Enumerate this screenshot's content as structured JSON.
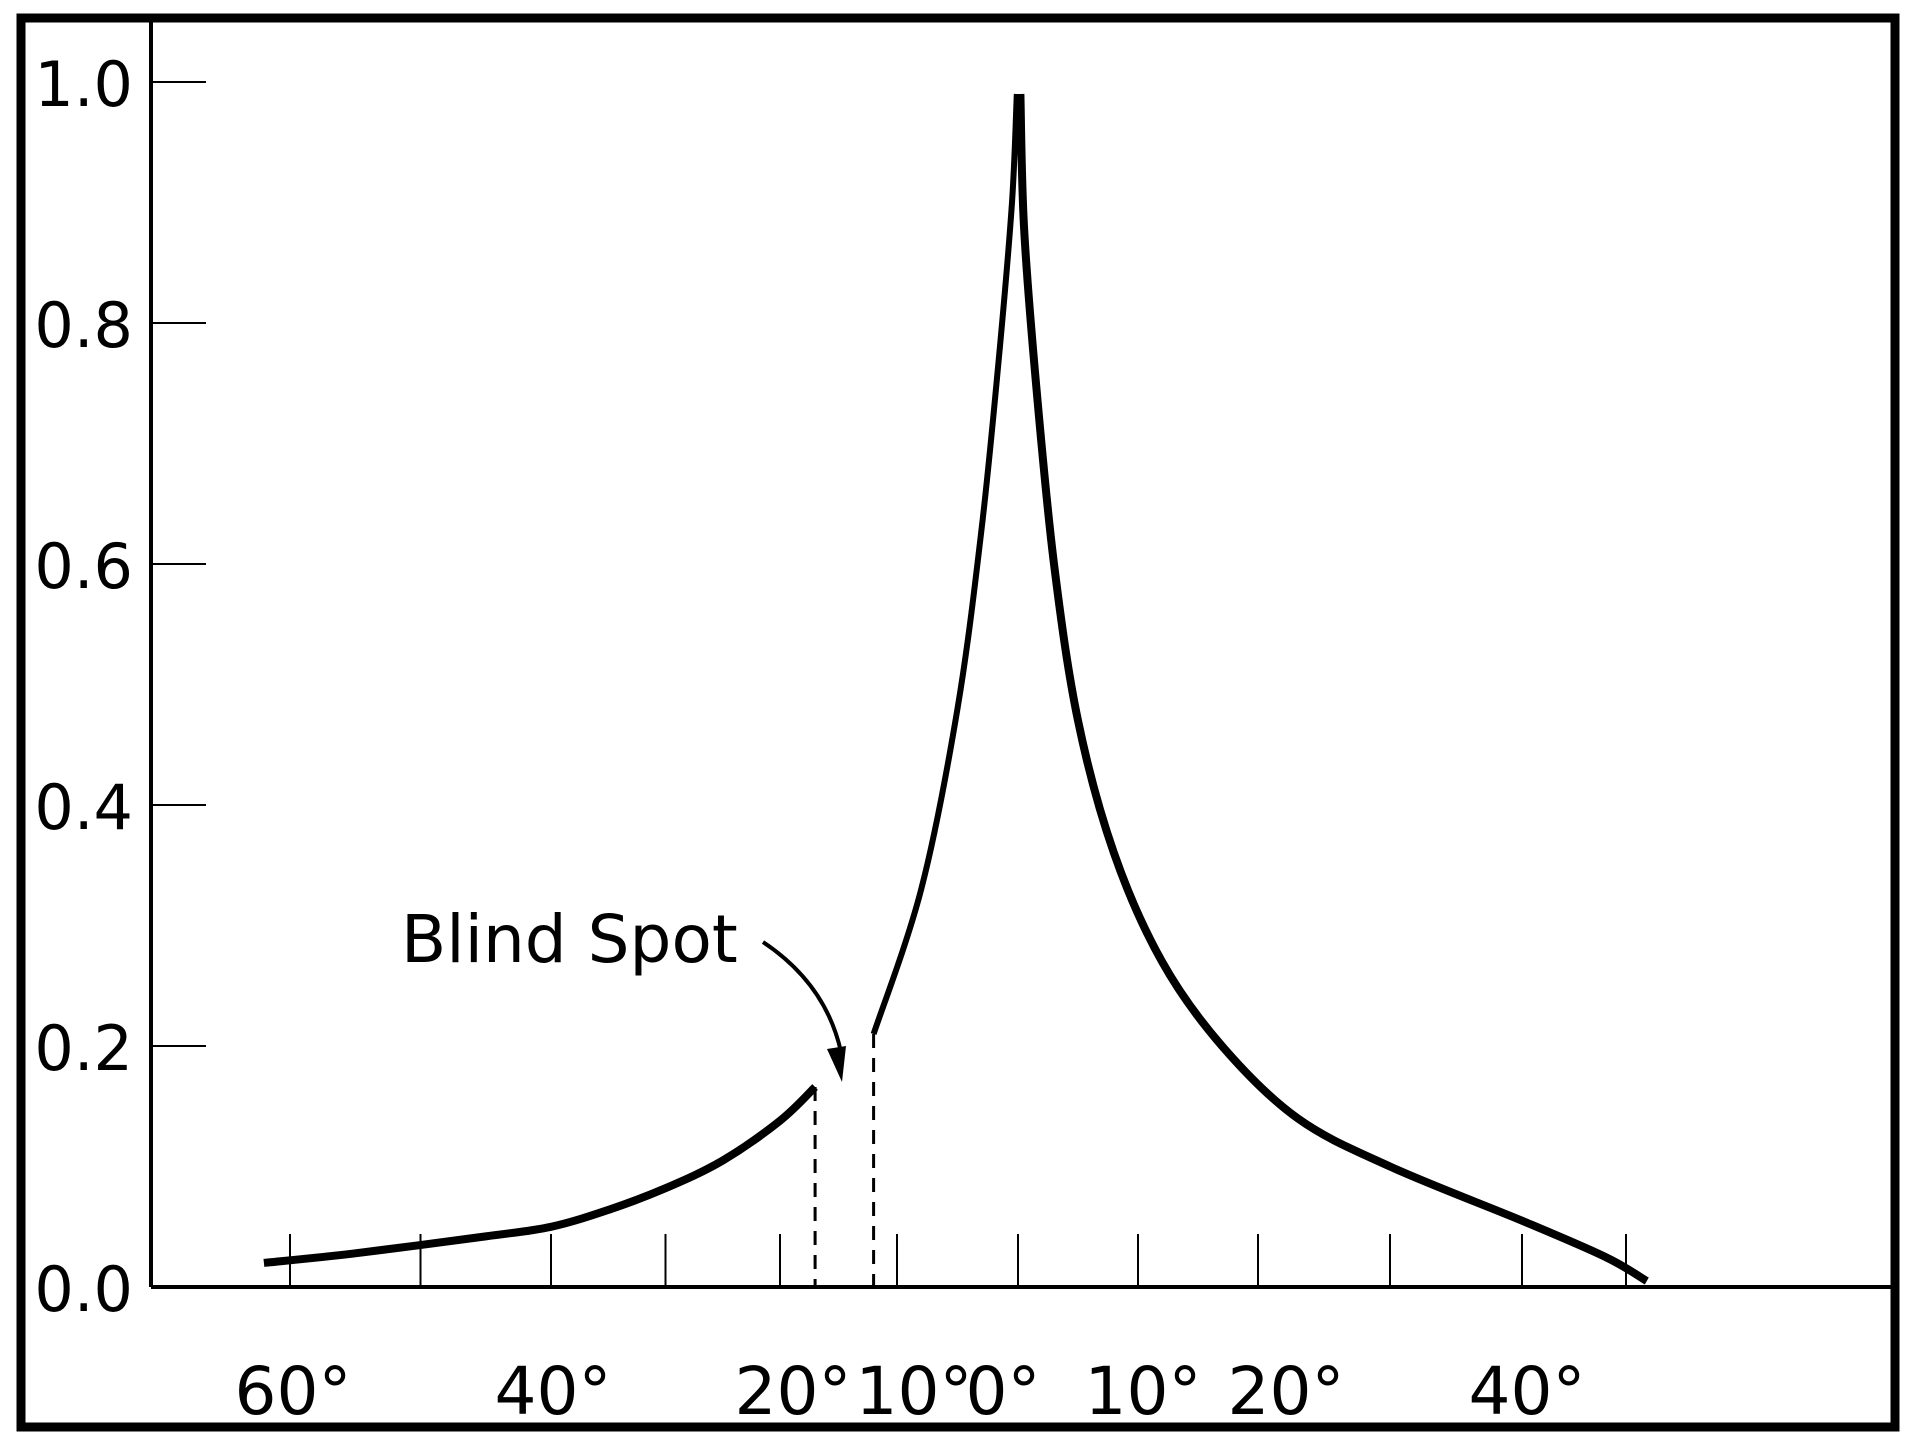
{
  "chart_data": {
    "type": "line",
    "title": "",
    "xlabel": "",
    "ylabel": "",
    "ylim": [
      0,
      1.0
    ],
    "y_ticks": [
      {
        "value": 0.0,
        "label": "0.0"
      },
      {
        "value": 0.2,
        "label": "0.2"
      },
      {
        "value": 0.4,
        "label": "0.4"
      },
      {
        "value": 0.6,
        "label": "0.6"
      },
      {
        "value": 0.8,
        "label": "0.8"
      },
      {
        "value": 1.0,
        "label": "1.0"
      }
    ],
    "x_tick_labels": [
      "60°",
      "40°",
      "20°",
      "10°",
      "0°",
      "10°",
      "20°",
      "40°"
    ],
    "grid": false,
    "series": [
      {
        "segments": [
          {
            "points": [
              {
                "x": -62,
                "y": 0.02
              },
              {
                "x": -55,
                "y": 0.028
              },
              {
                "x": -45,
                "y": 0.042
              },
              {
                "x": -40,
                "y": 0.05
              },
              {
                "x": -35,
                "y": 0.064
              },
              {
                "x": -30,
                "y": 0.082
              },
              {
                "x": -25,
                "y": 0.105
              },
              {
                "x": -20,
                "y": 0.138
              },
              {
                "x": -17,
                "y": 0.166
              }
            ]
          },
          {
            "points": [
              {
                "x": -12,
                "y": 0.21
              },
              {
                "x": -8,
                "y": 0.33
              },
              {
                "x": -5,
                "y": 0.48
              },
              {
                "x": -3,
                "y": 0.63
              },
              {
                "x": -1.5,
                "y": 0.78
              },
              {
                "x": -0.5,
                "y": 0.9
              },
              {
                "x": -0.1,
                "y": 0.99
              }
            ]
          },
          {
            "points": [
              {
                "x": 0.2,
                "y": 0.99
              },
              {
                "x": 0.5,
                "y": 0.88
              },
              {
                "x": 1.5,
                "y": 0.75
              },
              {
                "x": 3,
                "y": 0.6
              },
              {
                "x": 5,
                "y": 0.47
              },
              {
                "x": 8,
                "y": 0.36
              },
              {
                "x": 12,
                "y": 0.27
              },
              {
                "x": 17,
                "y": 0.2
              },
              {
                "x": 23,
                "y": 0.14
              },
              {
                "x": 30,
                "y": 0.1
              },
              {
                "x": 40,
                "y": 0.055
              },
              {
                "x": 48,
                "y": 0.025
              },
              {
                "x": 52,
                "y": 0.005
              }
            ]
          }
        ]
      }
    ],
    "blind_spot": {
      "x_start": -17,
      "x_end": -12
    },
    "annotations": [
      {
        "text": "Blind Spot",
        "target_x": -15,
        "target_y": 0.17
      }
    ]
  }
}
